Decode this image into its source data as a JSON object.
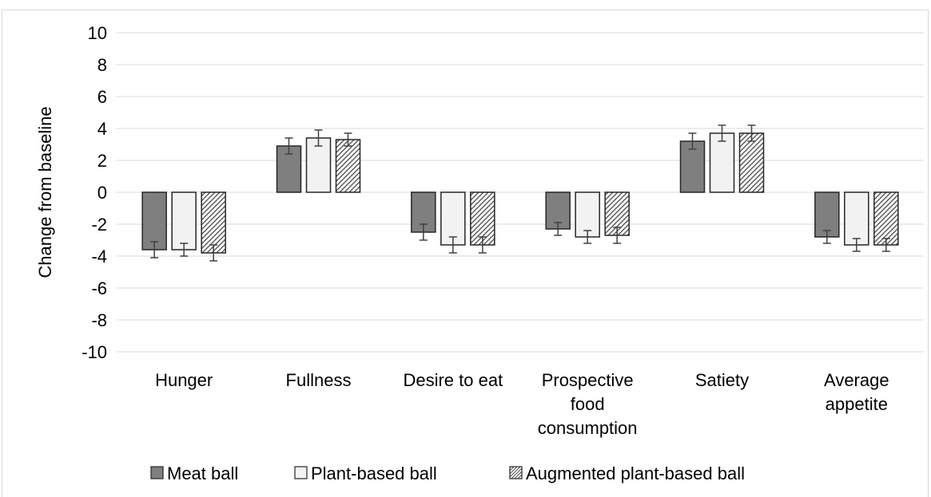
{
  "chart_data": {
    "type": "bar",
    "title": "",
    "xlabel": "",
    "ylabel": "Change from baseline",
    "ylim": [
      -10,
      10
    ],
    "yticks": [
      10,
      8,
      6,
      4,
      2,
      0,
      -2,
      -4,
      -6,
      -8,
      -10
    ],
    "grid": true,
    "legend_position": "bottom",
    "categories": [
      [
        "Hunger"
      ],
      [
        "Fullness"
      ],
      [
        "Desire to eat"
      ],
      [
        "Prospective",
        "food",
        "consumption"
      ],
      [
        "Satiety"
      ],
      [
        "Average",
        "appetite"
      ]
    ],
    "series": [
      {
        "name": "Meat ball",
        "fill": "dark",
        "color": "#7f7f7f",
        "values": [
          -3.6,
          2.9,
          -2.5,
          -2.3,
          3.2,
          -2.8
        ],
        "error": [
          0.5,
          0.5,
          0.5,
          0.4,
          0.5,
          0.4
        ]
      },
      {
        "name": "Plant-based ball",
        "fill": "light",
        "color": "#f2f2f2",
        "values": [
          -3.6,
          3.4,
          -3.3,
          -2.8,
          3.7,
          -3.3
        ],
        "error": [
          0.4,
          0.5,
          0.5,
          0.4,
          0.5,
          0.4
        ]
      },
      {
        "name": "Augmented plant-based ball",
        "fill": "hatched",
        "color": "#bfbfbf",
        "values": [
          -3.8,
          3.3,
          -3.3,
          -2.7,
          3.7,
          -3.3
        ],
        "error": [
          0.5,
          0.4,
          0.5,
          0.5,
          0.5,
          0.4
        ]
      }
    ]
  }
}
